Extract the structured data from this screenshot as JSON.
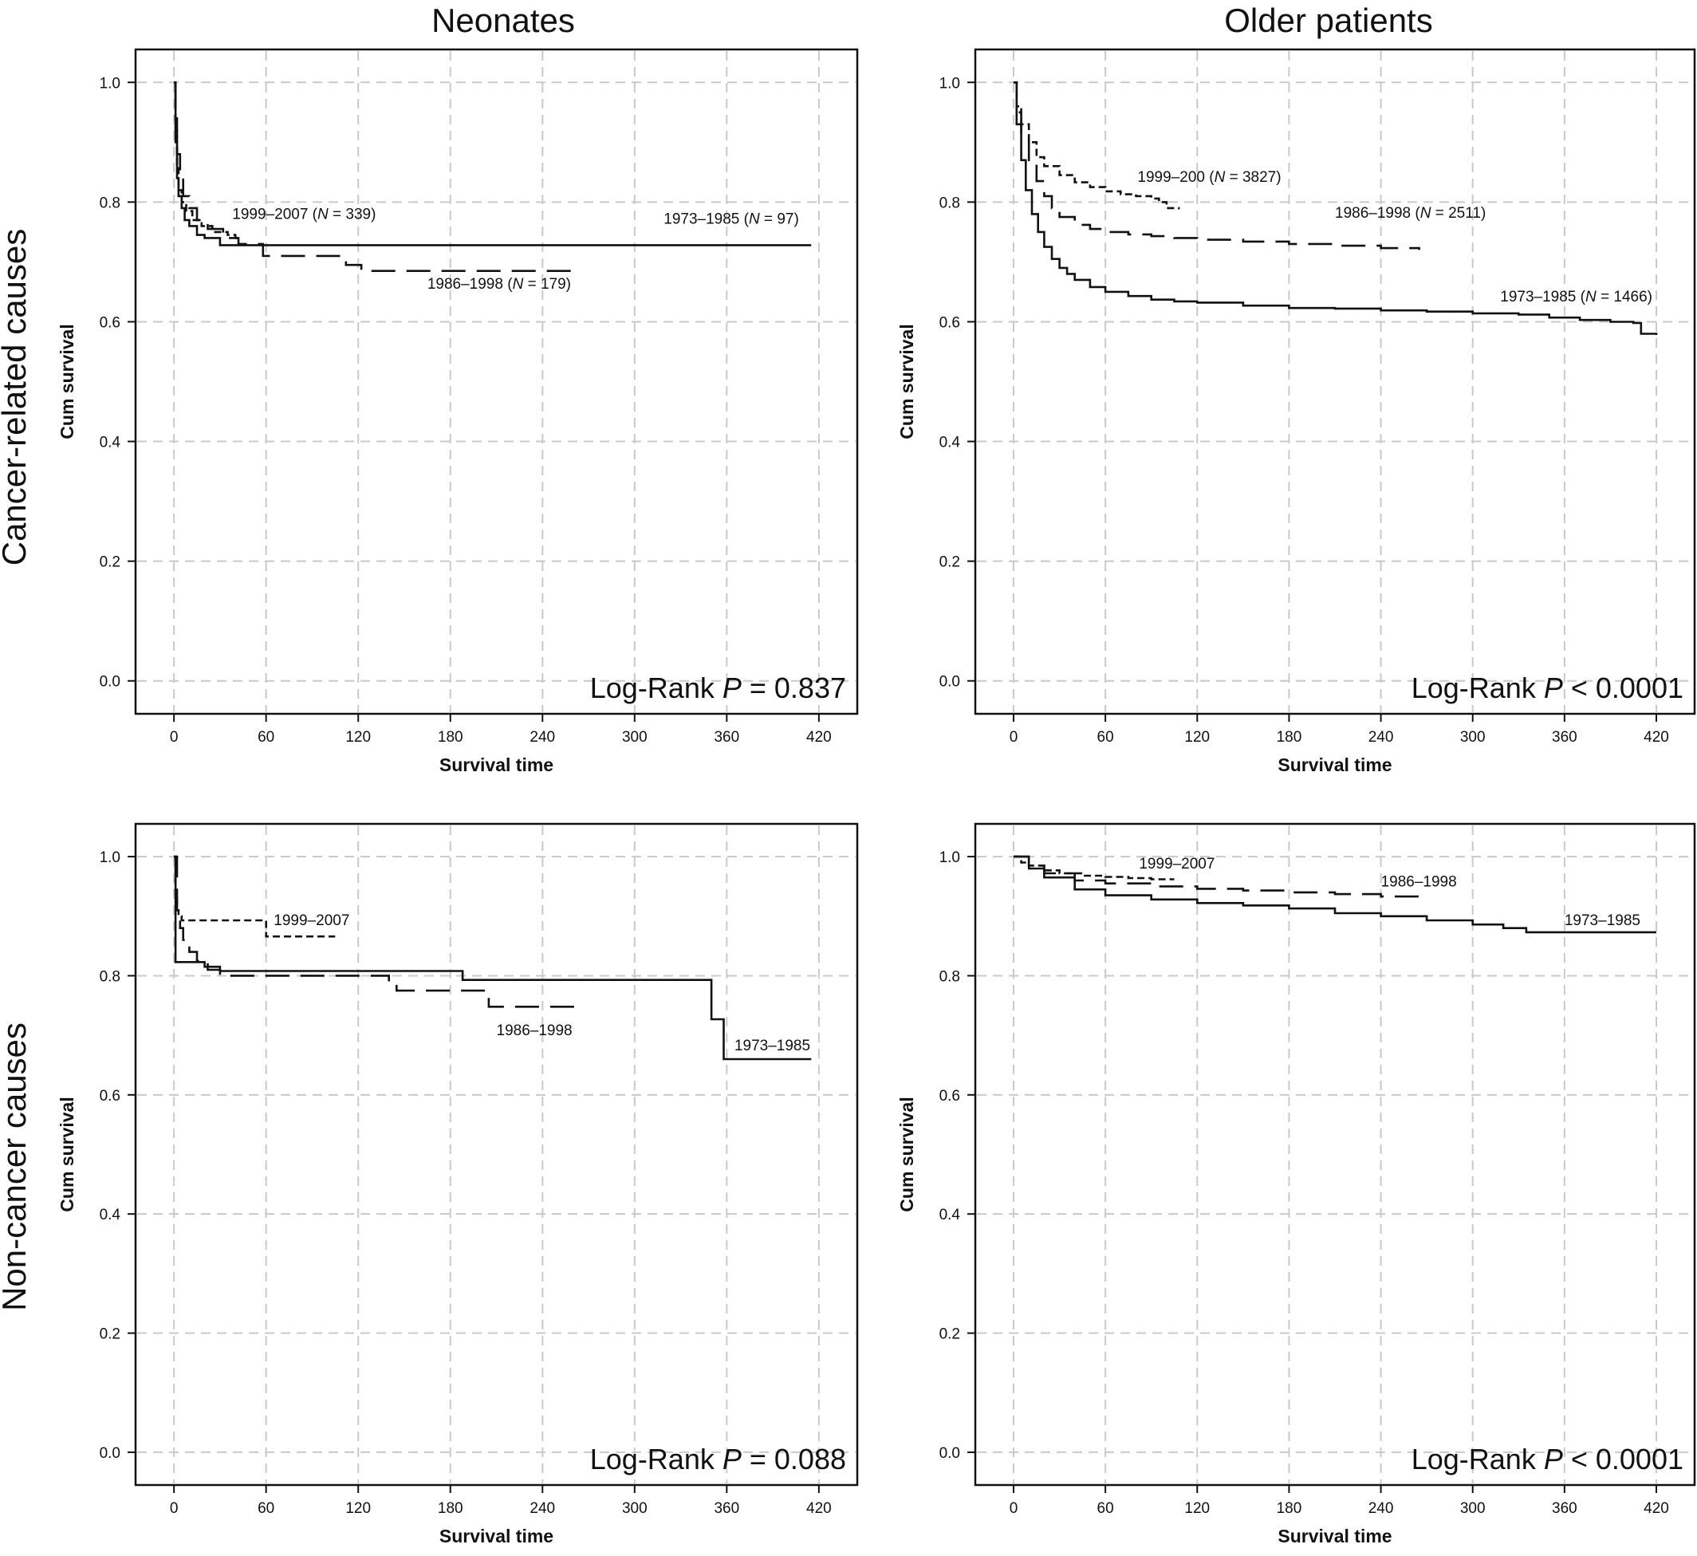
{
  "figure": {
    "column_titles": [
      "Neonates",
      "Older patients"
    ],
    "row_titles": [
      "Cancer-related causes",
      "Non-cancer causes"
    ]
  },
  "chart_data": [
    {
      "id": "neonates-cancer",
      "type": "line",
      "title": "",
      "xlabel": "Survival time",
      "ylabel": "Cum survival",
      "xlim": [
        -25,
        445
      ],
      "ylim": [
        -0.055,
        1.055
      ],
      "xticks": [
        0,
        60,
        120,
        180,
        240,
        300,
        360,
        420
      ],
      "yticks": [
        0.0,
        0.2,
        0.4,
        0.6,
        0.8,
        1.0
      ],
      "ytick_labels": [
        "0.0",
        "0.2",
        "0.4",
        "0.6",
        "0.8",
        "1.0"
      ],
      "grid": true,
      "logrank_prefix": "Log-Rank ",
      "logrank_p": "P",
      "logrank_value": " = 0.837",
      "series": [
        {
          "label_parts": [
            "1973–1985 (",
            "N",
            " = 97)"
          ],
          "dash": "solid",
          "label_at": [
            407,
            0.764
          ],
          "label_anchor": "end",
          "x": [
            0,
            1,
            2,
            3,
            5,
            7,
            10,
            15,
            20,
            30,
            415
          ],
          "y": [
            1.0,
            0.9,
            0.84,
            0.81,
            0.79,
            0.77,
            0.76,
            0.745,
            0.74,
            0.728,
            0.728
          ]
        },
        {
          "label_parts": [
            "1999–2007 (",
            "N",
            " = 339)"
          ],
          "dash": "dense",
          "label_at": [
            38,
            0.772
          ],
          "label_anchor": "start",
          "x": [
            0,
            1,
            2,
            3,
            5,
            8,
            12,
            18,
            25,
            35,
            40,
            42
          ],
          "y": [
            1.0,
            0.92,
            0.86,
            0.82,
            0.8,
            0.785,
            0.77,
            0.76,
            0.75,
            0.745,
            0.74,
            0.74
          ]
        },
        {
          "label_parts": [
            "1986–1998 (",
            "N",
            " = 179)"
          ],
          "dash": "long",
          "label_at": [
            165,
            0.655
          ],
          "label_anchor": "start",
          "x": [
            0,
            1,
            2,
            4,
            6,
            10,
            15,
            22,
            32,
            42,
            58,
            100,
            112,
            122,
            265
          ],
          "y": [
            1.0,
            0.94,
            0.88,
            0.84,
            0.81,
            0.79,
            0.77,
            0.755,
            0.74,
            0.73,
            0.71,
            0.71,
            0.695,
            0.685,
            0.685
          ]
        }
      ]
    },
    {
      "id": "older-cancer",
      "type": "line",
      "title": "",
      "xlabel": "Survival time",
      "ylabel": "Cum survival",
      "xlim": [
        -25,
        445
      ],
      "ylim": [
        -0.055,
        1.055
      ],
      "xticks": [
        0,
        60,
        120,
        180,
        240,
        300,
        360,
        420
      ],
      "yticks": [
        0.0,
        0.2,
        0.4,
        0.6,
        0.8,
        1.0
      ],
      "ytick_labels": [
        "0.0",
        "0.2",
        "0.4",
        "0.6",
        "0.8",
        "1.0"
      ],
      "grid": true,
      "logrank_prefix": "Log-Rank ",
      "logrank_p": "P",
      "logrank_value": " < 0.0001",
      "series": [
        {
          "label_parts": [
            "1973–1985 (",
            "N",
            " = 1466)"
          ],
          "dash": "solid",
          "label_at": [
            318,
            0.634
          ],
          "label_anchor": "start",
          "x": [
            0,
            2,
            5,
            8,
            12,
            16,
            20,
            25,
            30,
            35,
            40,
            50,
            60,
            75,
            90,
            105,
            120,
            150,
            180,
            210,
            240,
            270,
            300,
            330,
            350,
            370,
            390,
            405,
            410,
            420
          ],
          "y": [
            1.0,
            0.93,
            0.87,
            0.82,
            0.78,
            0.75,
            0.725,
            0.705,
            0.69,
            0.68,
            0.67,
            0.658,
            0.65,
            0.643,
            0.637,
            0.634,
            0.632,
            0.627,
            0.623,
            0.622,
            0.619,
            0.617,
            0.614,
            0.612,
            0.607,
            0.603,
            0.6,
            0.598,
            0.58,
            0.578
          ]
        },
        {
          "label_parts": [
            "1999–200 (",
            "N",
            " = 3827)"
          ],
          "dash": "dense",
          "label_at": [
            81,
            0.834
          ],
          "label_anchor": "start",
          "x": [
            0,
            2,
            5,
            10,
            15,
            20,
            30,
            40,
            50,
            60,
            70,
            80,
            90,
            95,
            100,
            108
          ],
          "y": [
            1.0,
            0.96,
            0.93,
            0.9,
            0.875,
            0.86,
            0.845,
            0.833,
            0.825,
            0.818,
            0.813,
            0.81,
            0.806,
            0.8,
            0.79,
            0.788
          ]
        },
        {
          "label_parts": [
            "1986–1998 (",
            "N",
            " = 2511)"
          ],
          "dash": "long",
          "label_at": [
            210,
            0.774
          ],
          "label_anchor": "start",
          "x": [
            0,
            2,
            5,
            10,
            15,
            20,
            25,
            30,
            40,
            50,
            60,
            75,
            90,
            105,
            120,
            150,
            180,
            210,
            240,
            265
          ],
          "y": [
            1.0,
            0.95,
            0.91,
            0.865,
            0.835,
            0.81,
            0.79,
            0.775,
            0.762,
            0.755,
            0.75,
            0.746,
            0.743,
            0.74,
            0.737,
            0.734,
            0.73,
            0.727,
            0.723,
            0.72
          ]
        }
      ]
    },
    {
      "id": "neonates-noncancer",
      "type": "line",
      "title": "",
      "xlabel": "Survival time",
      "ylabel": "Cum survival",
      "xlim": [
        -25,
        445
      ],
      "ylim": [
        -0.055,
        1.055
      ],
      "xticks": [
        0,
        60,
        120,
        180,
        240,
        300,
        360,
        420
      ],
      "yticks": [
        0.0,
        0.2,
        0.4,
        0.6,
        0.8,
        1.0
      ],
      "ytick_labels": [
        "0.0",
        "0.2",
        "0.4",
        "0.6",
        "0.8",
        "1.0"
      ],
      "grid": true,
      "logrank_prefix": "Log-Rank ",
      "logrank_p": "P",
      "logrank_value": " = 0.088",
      "series": [
        {
          "label_parts": [
            "1973–1985"
          ],
          "dash": "solid",
          "label_at": [
            365,
            0.675
          ],
          "label_anchor": "start",
          "x": [
            0,
            1,
            2,
            20,
            30,
            188,
            350,
            358,
            415
          ],
          "y": [
            1.0,
            0.823,
            0.823,
            0.815,
            0.808,
            0.793,
            0.727,
            0.66,
            0.66
          ]
        },
        {
          "label_parts": [
            "1999–2007"
          ],
          "dash": "dense",
          "label_at": [
            65,
            0.885
          ],
          "label_anchor": "start",
          "x": [
            0,
            1,
            2,
            3,
            5,
            60,
            105
          ],
          "y": [
            1.0,
            0.93,
            0.91,
            0.9,
            0.893,
            0.866,
            0.866
          ]
        },
        {
          "label_parts": [
            "1986–1998"
          ],
          "dash": "long",
          "label_at": [
            210,
            0.7
          ],
          "label_anchor": "start",
          "x": [
            0,
            2,
            4,
            6,
            10,
            15,
            22,
            30,
            135,
            140,
            145,
            200,
            205,
            265
          ],
          "y": [
            1.0,
            0.91,
            0.88,
            0.86,
            0.84,
            0.825,
            0.81,
            0.8,
            0.8,
            0.79,
            0.775,
            0.775,
            0.748,
            0.748
          ]
        }
      ]
    },
    {
      "id": "older-noncancer",
      "type": "line",
      "title": "",
      "xlabel": "Survival time",
      "ylabel": "Cum survival",
      "xlim": [
        -25,
        445
      ],
      "ylim": [
        -0.055,
        1.055
      ],
      "xticks": [
        0,
        60,
        120,
        180,
        240,
        300,
        360,
        420
      ],
      "yticks": [
        0.0,
        0.2,
        0.4,
        0.6,
        0.8,
        1.0
      ],
      "ytick_labels": [
        "0.0",
        "0.2",
        "0.4",
        "0.6",
        "0.8",
        "1.0"
      ],
      "grid": true,
      "logrank_prefix": "Log-Rank ",
      "logrank_p": "P",
      "logrank_value": " < 0.0001",
      "series": [
        {
          "label_parts": [
            "1973–1985"
          ],
          "dash": "solid",
          "label_at": [
            360,
            0.885
          ],
          "label_anchor": "start",
          "x": [
            0,
            10,
            20,
            40,
            60,
            90,
            120,
            150,
            180,
            210,
            240,
            270,
            300,
            320,
            335,
            360,
            420
          ],
          "y": [
            1.0,
            0.98,
            0.965,
            0.945,
            0.935,
            0.928,
            0.922,
            0.918,
            0.913,
            0.905,
            0.9,
            0.893,
            0.886,
            0.88,
            0.873,
            0.873,
            0.873
          ]
        },
        {
          "label_parts": [
            "1999–2007"
          ],
          "dash": "dense",
          "label_at": [
            82,
            0.98
          ],
          "label_anchor": "start",
          "x": [
            0,
            5,
            10,
            20,
            30,
            45,
            60,
            75,
            90,
            105
          ],
          "y": [
            1.0,
            0.99,
            0.985,
            0.977,
            0.972,
            0.968,
            0.966,
            0.964,
            0.962,
            0.962
          ]
        },
        {
          "label_parts": [
            "1986–1998"
          ],
          "dash": "long",
          "label_at": [
            240,
            0.95
          ],
          "label_anchor": "start",
          "x": [
            0,
            10,
            20,
            40,
            60,
            90,
            120,
            150,
            180,
            210,
            240,
            265
          ],
          "y": [
            1.0,
            0.985,
            0.972,
            0.96,
            0.955,
            0.95,
            0.946,
            0.943,
            0.94,
            0.937,
            0.933,
            0.933
          ]
        }
      ]
    }
  ]
}
